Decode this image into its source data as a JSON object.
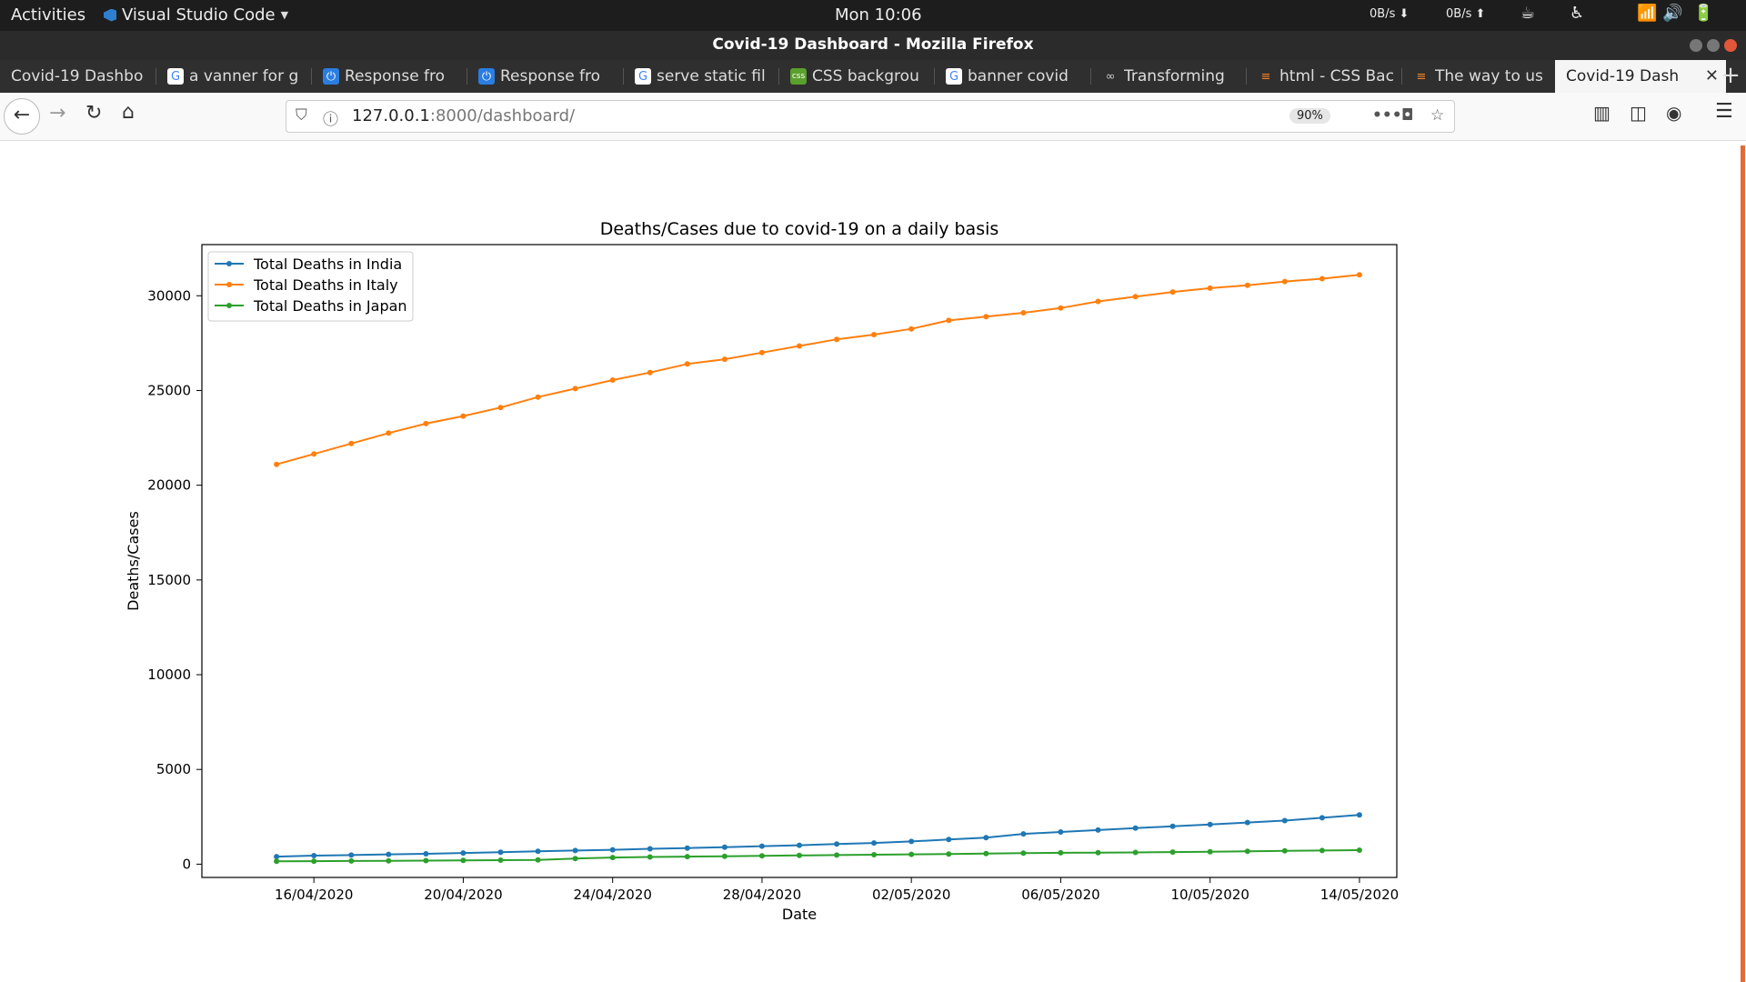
{
  "topbar": {
    "activities": "Activities",
    "app_name": "Visual Studio Code",
    "clock": "Mon 10:06",
    "net_down": "0B/s ⬇",
    "net_up": "0B/s ⬆"
  },
  "window": {
    "title": "Covid-19 Dashboard - Mozilla Firefox"
  },
  "tabs": [
    {
      "label": "Covid-19 Dashbo",
      "icon": "none"
    },
    {
      "label": "a vanner for g",
      "icon": "google-icon"
    },
    {
      "label": "Response fro",
      "icon": "power-icon"
    },
    {
      "label": "Response fro",
      "icon": "power-icon"
    },
    {
      "label": "serve static fil",
      "icon": "google-icon"
    },
    {
      "label": "CSS backgrou",
      "icon": "css-icon"
    },
    {
      "label": "banner covid",
      "icon": "google-icon"
    },
    {
      "label": "Transforming",
      "icon": "transform-icon"
    },
    {
      "label": "html - CSS Bac",
      "icon": "stackoverflow-icon"
    },
    {
      "label": "The way to us",
      "icon": "stackoverflow-icon"
    },
    {
      "label": "Covid-19 Dash",
      "icon": "none",
      "active": true
    }
  ],
  "navbar": {
    "url_host": "127.0.0.1",
    "url_path": ":8000/dashboard/",
    "zoom": "90%"
  },
  "colors": {
    "india": "#1f77b4",
    "italy": "#ff7f0e",
    "japan": "#2ca02c"
  },
  "chart_data": {
    "type": "line",
    "title": "Deaths/Cases due to covid-19 on a daily basis",
    "xlabel": "Date",
    "ylabel": "Deaths/Cases",
    "ylim": [
      -700,
      32700
    ],
    "xlim": [
      "2020-04-13",
      "2020-05-15"
    ],
    "yticks": [
      0,
      5000,
      10000,
      15000,
      20000,
      25000,
      30000
    ],
    "xticks": [
      "16/04/2020",
      "20/04/2020",
      "24/04/2020",
      "28/04/2020",
      "02/05/2020",
      "06/05/2020",
      "10/05/2020",
      "14/05/2020"
    ],
    "legend_position": "top-left",
    "grid": false,
    "x": [
      "2020-04-15",
      "2020-04-16",
      "2020-04-17",
      "2020-04-18",
      "2020-04-19",
      "2020-04-20",
      "2020-04-21",
      "2020-04-22",
      "2020-04-23",
      "2020-04-24",
      "2020-04-25",
      "2020-04-26",
      "2020-04-27",
      "2020-04-28",
      "2020-04-29",
      "2020-04-30",
      "2020-05-01",
      "2020-05-02",
      "2020-05-03",
      "2020-05-04",
      "2020-05-05",
      "2020-05-06",
      "2020-05-07",
      "2020-05-08",
      "2020-05-09",
      "2020-05-10",
      "2020-05-11",
      "2020-05-12",
      "2020-05-13",
      "2020-05-14"
    ],
    "series": [
      {
        "name": "Total Deaths in India",
        "color": "#1f77b4",
        "values": [
          400,
          450,
          480,
          520,
          550,
          590,
          630,
          680,
          720,
          760,
          810,
          850,
          900,
          950,
          1000,
          1060,
          1120,
          1200,
          1300,
          1400,
          1600,
          1700,
          1800,
          1900,
          2000,
          2100,
          2200,
          2300,
          2450,
          2600
        ]
      },
      {
        "name": "Total Deaths in Italy",
        "color": "#ff7f0e",
        "values": [
          21100,
          21650,
          22200,
          22750,
          23250,
          23650,
          24100,
          24650,
          25100,
          25550,
          25950,
          26400,
          26650,
          27000,
          27350,
          27700,
          27950,
          28250,
          28700,
          28900,
          29100,
          29350,
          29700,
          29950,
          30200,
          30400,
          30550,
          30750,
          30900,
          31100
        ]
      },
      {
        "name": "Total Deaths in Japan",
        "color": "#2ca02c",
        "values": [
          150,
          160,
          170,
          180,
          190,
          200,
          210,
          220,
          300,
          350,
          380,
          400,
          420,
          440,
          460,
          480,
          500,
          520,
          540,
          560,
          580,
          600,
          610,
          620,
          640,
          660,
          680,
          700,
          720,
          740
        ]
      }
    ]
  }
}
